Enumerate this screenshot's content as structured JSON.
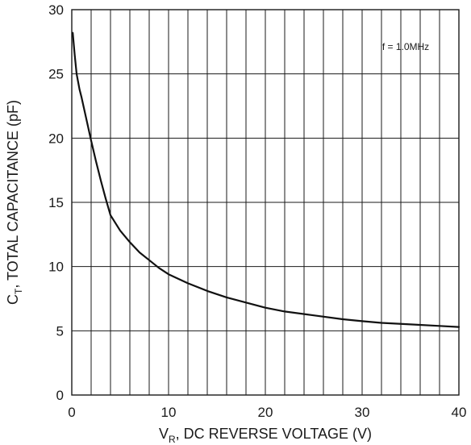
{
  "chart_data": {
    "type": "line",
    "title": "",
    "xlabel_main": "V",
    "xlabel_sub": "R",
    "xlabel_rest": ", DC REVERSE VOLTAGE (V)",
    "ylabel_main": "C",
    "ylabel_sub": "T",
    "ylabel_rest": ", TOTAL CAPACITANCE (pF)",
    "annotation": "f = 1.0MHz",
    "xlim": [
      0,
      40
    ],
    "ylim": [
      0,
      30
    ],
    "x_ticks": [
      0,
      10,
      20,
      30,
      40
    ],
    "y_ticks": [
      0,
      5,
      10,
      15,
      20,
      25,
      30
    ],
    "x_grid_step": 2,
    "y_grid_step": 5,
    "grid": true,
    "series": [
      {
        "color": "#111111",
        "x": [
          0.1,
          0.3,
          0.5,
          0.8,
          1,
          1.5,
          2,
          2.5,
          3,
          3.5,
          4,
          5,
          6,
          7,
          8,
          9,
          10,
          12,
          14,
          16,
          18,
          20,
          22,
          25,
          28,
          30,
          32,
          35,
          38,
          40
        ],
        "y": [
          28.2,
          26.5,
          25.0,
          23.8,
          23.2,
          21.5,
          19.8,
          18.2,
          16.7,
          15.3,
          14.0,
          12.8,
          11.9,
          11.1,
          10.5,
          9.9,
          9.4,
          8.7,
          8.1,
          7.6,
          7.2,
          6.8,
          6.5,
          6.2,
          5.9,
          5.75,
          5.62,
          5.5,
          5.38,
          5.3
        ]
      }
    ]
  }
}
